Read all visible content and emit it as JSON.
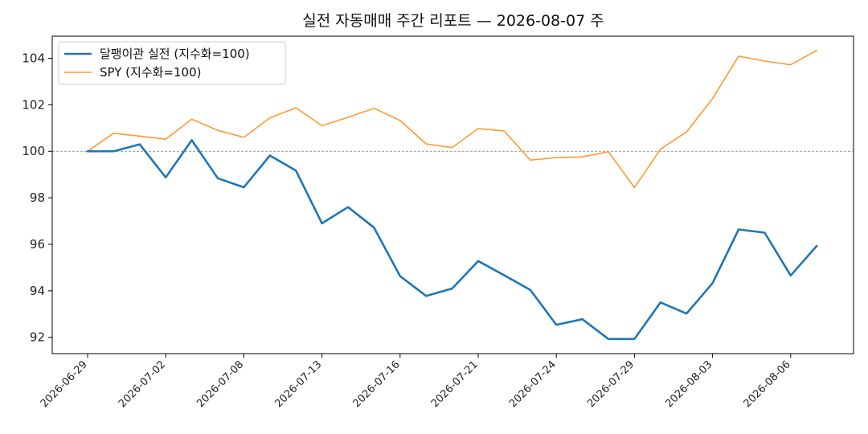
{
  "chart_data": {
    "type": "line",
    "title": "실전 자동매매 주간 리포트 — 2026-08-07 주",
    "xlabel": "",
    "ylabel": "",
    "ylim": [
      91.3,
      104.95
    ],
    "yticks": [
      92,
      94,
      96,
      98,
      100,
      102,
      104
    ],
    "x_ticks": [
      "2026-06-29",
      "2026-07-02",
      "2026-07-08",
      "2026-07-13",
      "2026-07-16",
      "2026-07-21",
      "2026-07-24",
      "2026-07-29",
      "2026-08-03",
      "2026-08-06"
    ],
    "x": [
      "2026-06-29",
      "2026-06-30",
      "2026-07-01",
      "2026-07-02",
      "2026-07-06",
      "2026-07-07",
      "2026-07-08",
      "2026-07-09",
      "2026-07-10",
      "2026-07-13",
      "2026-07-14",
      "2026-07-15",
      "2026-07-16",
      "2026-07-17",
      "2026-07-20",
      "2026-07-21",
      "2026-07-22",
      "2026-07-23",
      "2026-07-24",
      "2026-07-27",
      "2026-07-28",
      "2026-07-29",
      "2026-07-30",
      "2026-07-31",
      "2026-08-03",
      "2026-08-04",
      "2026-08-05",
      "2026-08-06",
      "2026-08-07"
    ],
    "reference_line": 100,
    "legend_position": "upper-left",
    "grid": false,
    "series": [
      {
        "name": "달팽이관 실전 (지수화=100)",
        "color": "#1f77b4",
        "values": [
          100.0,
          100.0,
          100.3,
          98.88,
          100.48,
          98.84,
          98.45,
          99.82,
          99.17,
          96.9,
          97.6,
          96.72,
          94.63,
          93.78,
          94.1,
          95.28,
          94.67,
          94.04,
          92.54,
          92.78,
          91.93,
          91.93,
          93.5,
          93.02,
          94.33,
          96.64,
          96.5,
          94.66,
          95.93
        ]
      },
      {
        "name": "SPY (지수화=100)",
        "color": "#ff9933",
        "values": [
          100.0,
          100.78,
          100.65,
          100.52,
          101.38,
          100.9,
          100.6,
          101.44,
          101.87,
          101.1,
          101.46,
          101.85,
          101.32,
          100.32,
          100.16,
          100.98,
          100.87,
          99.62,
          99.73,
          99.76,
          99.98,
          98.44,
          100.09,
          100.83,
          102.27,
          104.09,
          103.88,
          103.72,
          104.34
        ]
      }
    ]
  }
}
